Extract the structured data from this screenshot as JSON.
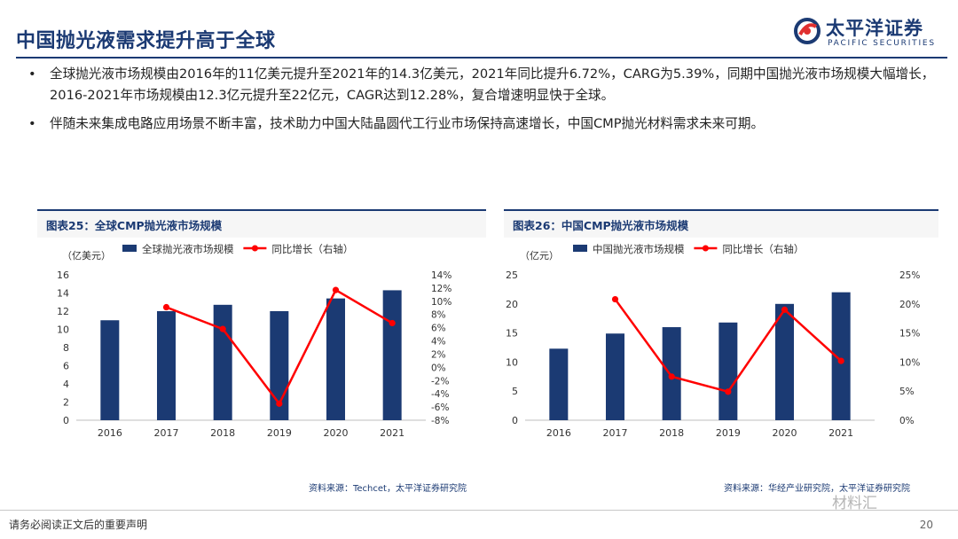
{
  "header": {
    "title": "中国抛光液需求提升高于全球",
    "logo_cn": "太平洋证券",
    "logo_en": "PACIFIC SECURITIES"
  },
  "bullets": [
    "全球抛光液市场规模由2016年的11亿美元提升至2021年的14.3亿美元，2021年同比提升6.72%，CARG为5.39%，同期中国抛光液市场规模大幅增长，2016-2021年市场规模由12.3亿元提升至22亿元，CAGR达到12.28%，复合增速明显快于全球。",
    "伴随未来集成电路应用场景不断丰富，技术助力中国大陆晶圆代工行业市场保持高速增长，中国CMP抛光材料需求未来可期。"
  ],
  "bullet_symbol": "•",
  "colors": {
    "bar": "#1b3a73",
    "line": "#ff0000",
    "title": "#1b3a73"
  },
  "chart_data": [
    {
      "type": "bar",
      "title": "图表25：全球CMP抛光液市场规模",
      "unit_label": "（亿美元）",
      "categories": [
        "2016",
        "2017",
        "2018",
        "2019",
        "2020",
        "2021"
      ],
      "series": [
        {
          "name": "全球抛光液市场规模",
          "type": "bar",
          "axis": "left",
          "values": [
            11.0,
            12.0,
            12.7,
            12.0,
            13.4,
            14.3
          ]
        },
        {
          "name": "同比增长（右轴）",
          "type": "line",
          "axis": "right",
          "values": [
            null,
            9.1,
            5.8,
            -5.5,
            11.7,
            6.7
          ]
        }
      ],
      "ylim": [
        0,
        16
      ],
      "yticks": [
        "0",
        "2",
        "4",
        "6",
        "8",
        "10",
        "12",
        "14",
        "16"
      ],
      "y2lim": [
        -8,
        14
      ],
      "y2ticks": [
        "-8%",
        "-6%",
        "-4%",
        "-2%",
        "0%",
        "2%",
        "4%",
        "6%",
        "8%",
        "10%",
        "12%",
        "14%"
      ],
      "legend": "top",
      "source": "资料来源：Techcet，太平洋证券研究院"
    },
    {
      "type": "bar",
      "title": "图表26：中国CMP抛光液市场规模",
      "unit_label": "（亿元）",
      "categories": [
        "2016",
        "2017",
        "2018",
        "2019",
        "2020",
        "2021"
      ],
      "series": [
        {
          "name": "中国抛光液市场规模",
          "type": "bar",
          "axis": "left",
          "values": [
            12.3,
            14.9,
            16.0,
            16.8,
            20.0,
            22.0
          ]
        },
        {
          "name": "同比增长（右轴）",
          "type": "line",
          "axis": "right",
          "values": [
            null,
            20.8,
            7.5,
            4.9,
            19.0,
            10.2
          ]
        }
      ],
      "ylim": [
        0,
        25
      ],
      "yticks": [
        "0",
        "5",
        "10",
        "15",
        "20",
        "25"
      ],
      "y2lim": [
        0,
        25
      ],
      "y2ticks": [
        "0%",
        "5%",
        "10%",
        "15%",
        "20%",
        "25%"
      ],
      "legend": "top",
      "source": "资料来源：华经产业研究院，太平洋证券研究院"
    }
  ],
  "footer": {
    "disclaimer": "请务必阅读正文后的重要声明",
    "page": "20",
    "watermark": "材料汇"
  }
}
